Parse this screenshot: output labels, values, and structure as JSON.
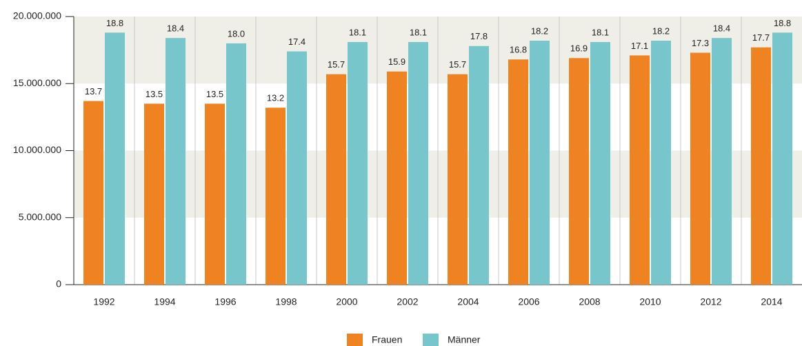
{
  "chart_data": {
    "type": "bar",
    "categories": [
      "1992",
      "1994",
      "1996",
      "1998",
      "2000",
      "2002",
      "2004",
      "2006",
      "2008",
      "2010",
      "2012",
      "2014"
    ],
    "series": [
      {
        "name": "Frauen",
        "color": "#f08321",
        "values": [
          13700000,
          13500000,
          13500000,
          13200000,
          15700000,
          15900000,
          15700000,
          16800000,
          16900000,
          17100000,
          17300000,
          17700000
        ],
        "value_labels": [
          "13.7",
          "13.5",
          "13.5",
          "13.2",
          "15.7",
          "15.9",
          "15.7",
          "16.8",
          "16.9",
          "17.1",
          "17.3",
          "17.7"
        ]
      },
      {
        "name": "Männer",
        "color": "#76c6cc",
        "values": [
          18800000,
          18400000,
          18000000,
          17400000,
          18100000,
          18100000,
          17800000,
          18200000,
          18100000,
          18200000,
          18400000,
          18800000
        ],
        "value_labels": [
          "18.8",
          "18.4",
          "18.0",
          "17.4",
          "18.1",
          "18.1",
          "17.8",
          "18.2",
          "18.1",
          "18.2",
          "18.4",
          "18.8"
        ]
      }
    ],
    "ylim": [
      0,
      20000000
    ],
    "yticks": [
      0,
      {
        "value": 5000000,
        "label": "5.000.000"
      },
      {
        "value": 10000000,
        "label": "10.000.000"
      },
      {
        "value": 15000000,
        "label": "15.000.000"
      },
      {
        "value": 20000000,
        "label": "20.000.000"
      }
    ],
    "grid": "bands",
    "legend": "bottom"
  }
}
